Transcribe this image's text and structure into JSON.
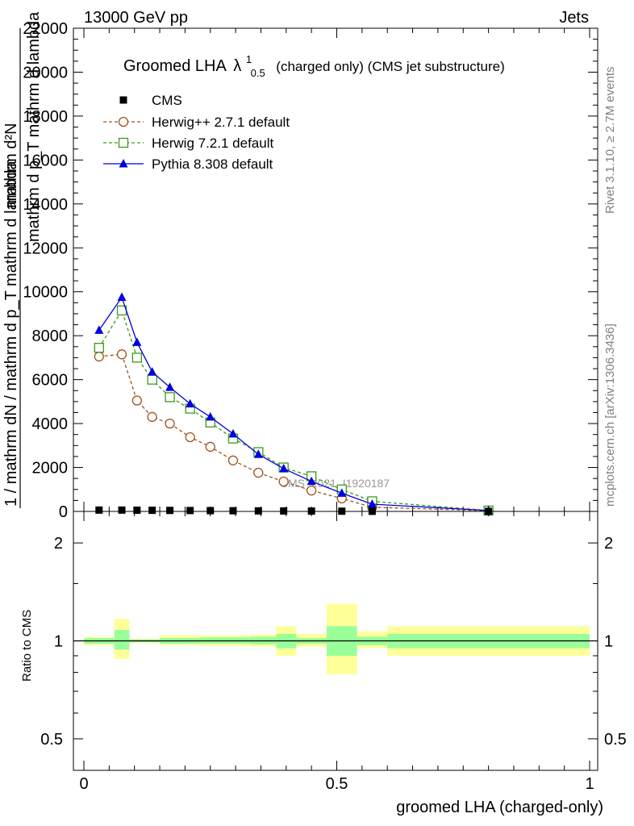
{
  "header": {
    "left": "13000 GeV pp",
    "right": "Jets"
  },
  "side_labels": {
    "rivet": "Rivet 3.1.10, ≥ 2.7M events",
    "mcplots": "mcplots.cern.ch [arXiv:1306.3436]"
  },
  "watermark": "CMS_2021_I1920187",
  "chart_data": [
    {
      "type": "line",
      "title": "Groomed LHA",
      "title_symbol": "λ",
      "title_sup": "1",
      "title_sub": "0.5",
      "title_suffix": "(charged only) (CMS jet substructure)",
      "ylabel_top": "mathrm d²N",
      "ylabel_bottom": "mathrm d p_T mathrm d lambda",
      "ylabel_main": "1 / mathrm dN / mathrm d p_T mathrm d lambda",
      "xlim": [
        0,
        1
      ],
      "ylim": [
        0,
        22000
      ],
      "yticks": [
        "0",
        "2000",
        "4000",
        "6000",
        "8000",
        "10000",
        "12000",
        "14000",
        "16000",
        "18000",
        "20000",
        "22000"
      ],
      "legend_position": "top-left",
      "legend": [
        "CMS",
        "Herwig++ 2.7.1 default",
        "Herwig 7.2.1 default",
        "Pythia 8.308 default"
      ],
      "series": [
        {
          "name": "CMS",
          "color": "#000000",
          "marker": "square-filled",
          "x": [
            0.03,
            0.075,
            0.105,
            0.135,
            0.17,
            0.21,
            0.25,
            0.295,
            0.345,
            0.395,
            0.45,
            0.51,
            0.57,
            0.8
          ],
          "y": [
            60,
            60,
            55,
            50,
            45,
            40,
            35,
            30,
            25,
            20,
            15,
            10,
            5,
            2
          ]
        },
        {
          "name": "Herwig++ 2.7.1 default",
          "color": "#a0521a",
          "marker": "circle-open",
          "x": [
            0.03,
            0.075,
            0.105,
            0.135,
            0.17,
            0.21,
            0.25,
            0.295,
            0.345,
            0.395,
            0.45,
            0.51,
            0.57,
            0.8
          ],
          "y": [
            7050,
            7150,
            5050,
            4300,
            4000,
            3380,
            2940,
            2320,
            1760,
            1360,
            950,
            590,
            190,
            30
          ]
        },
        {
          "name": "Herwig 7.2.1 default",
          "color": "#3a9a1a",
          "marker": "square-open",
          "x": [
            0.03,
            0.075,
            0.105,
            0.135,
            0.17,
            0.21,
            0.25,
            0.295,
            0.345,
            0.395,
            0.45,
            0.51,
            0.57,
            0.8
          ],
          "y": [
            7450,
            9150,
            7000,
            6000,
            5200,
            4680,
            4050,
            3320,
            2700,
            2000,
            1600,
            1000,
            460,
            40
          ]
        },
        {
          "name": "Pythia 8.308 default",
          "color": "#0000dd",
          "marker": "triangle-filled",
          "x": [
            0.03,
            0.075,
            0.105,
            0.135,
            0.17,
            0.21,
            0.25,
            0.295,
            0.345,
            0.395,
            0.45,
            0.51,
            0.57,
            0.8
          ],
          "y": [
            8250,
            9750,
            7700,
            6350,
            5650,
            4900,
            4300,
            3530,
            2600,
            1950,
            1370,
            830,
            330,
            40
          ]
        }
      ]
    },
    {
      "type": "bar",
      "ylabel": "Ratio to CMS",
      "xlabel": "groomed LHA (charged-only)",
      "xlim": [
        0,
        1
      ],
      "ylim": [
        0.4,
        2.5
      ],
      "log_y": true,
      "yticks_left": [
        "0.5",
        "1",
        "2"
      ],
      "yticks_right": [
        "0.5",
        "1",
        "2"
      ],
      "xticks": [
        "0",
        "0.5",
        "1"
      ],
      "bands": {
        "inner_color": "#99ff99",
        "outer_color": "#ffff99",
        "bins": [
          {
            "x0": 0.0,
            "x1": 0.06,
            "outer": [
              0.97,
              1.03
            ],
            "inner": [
              0.98,
              1.02
            ]
          },
          {
            "x0": 0.06,
            "x1": 0.09,
            "outer": [
              0.88,
              1.17
            ],
            "inner": [
              0.94,
              1.08
            ]
          },
          {
            "x0": 0.09,
            "x1": 0.15,
            "outer": [
              0.985,
              1.015
            ],
            "inner": [
              0.99,
              1.01
            ]
          },
          {
            "x0": 0.15,
            "x1": 0.23,
            "outer": [
              0.97,
              1.04
            ],
            "inner": [
              0.98,
              1.02
            ]
          },
          {
            "x0": 0.23,
            "x1": 0.33,
            "outer": [
              0.965,
              1.04
            ],
            "inner": [
              0.98,
              1.025
            ]
          },
          {
            "x0": 0.33,
            "x1": 0.38,
            "outer": [
              0.96,
              1.045
            ],
            "inner": [
              0.975,
              1.03
            ]
          },
          {
            "x0": 0.38,
            "x1": 0.42,
            "outer": [
              0.9,
              1.11
            ],
            "inner": [
              0.95,
              1.05
            ]
          },
          {
            "x0": 0.42,
            "x1": 0.48,
            "outer": [
              0.96,
              1.05
            ],
            "inner": [
              0.98,
              1.02
            ]
          },
          {
            "x0": 0.48,
            "x1": 0.54,
            "outer": [
              0.79,
              1.3
            ],
            "inner": [
              0.9,
              1.11
            ]
          },
          {
            "x0": 0.54,
            "x1": 0.6,
            "outer": [
              0.95,
              1.07
            ],
            "inner": [
              0.97,
              1.03
            ]
          },
          {
            "x0": 0.6,
            "x1": 1.0,
            "outer": [
              0.9,
              1.11
            ],
            "inner": [
              0.95,
              1.05
            ]
          }
        ]
      }
    }
  ]
}
